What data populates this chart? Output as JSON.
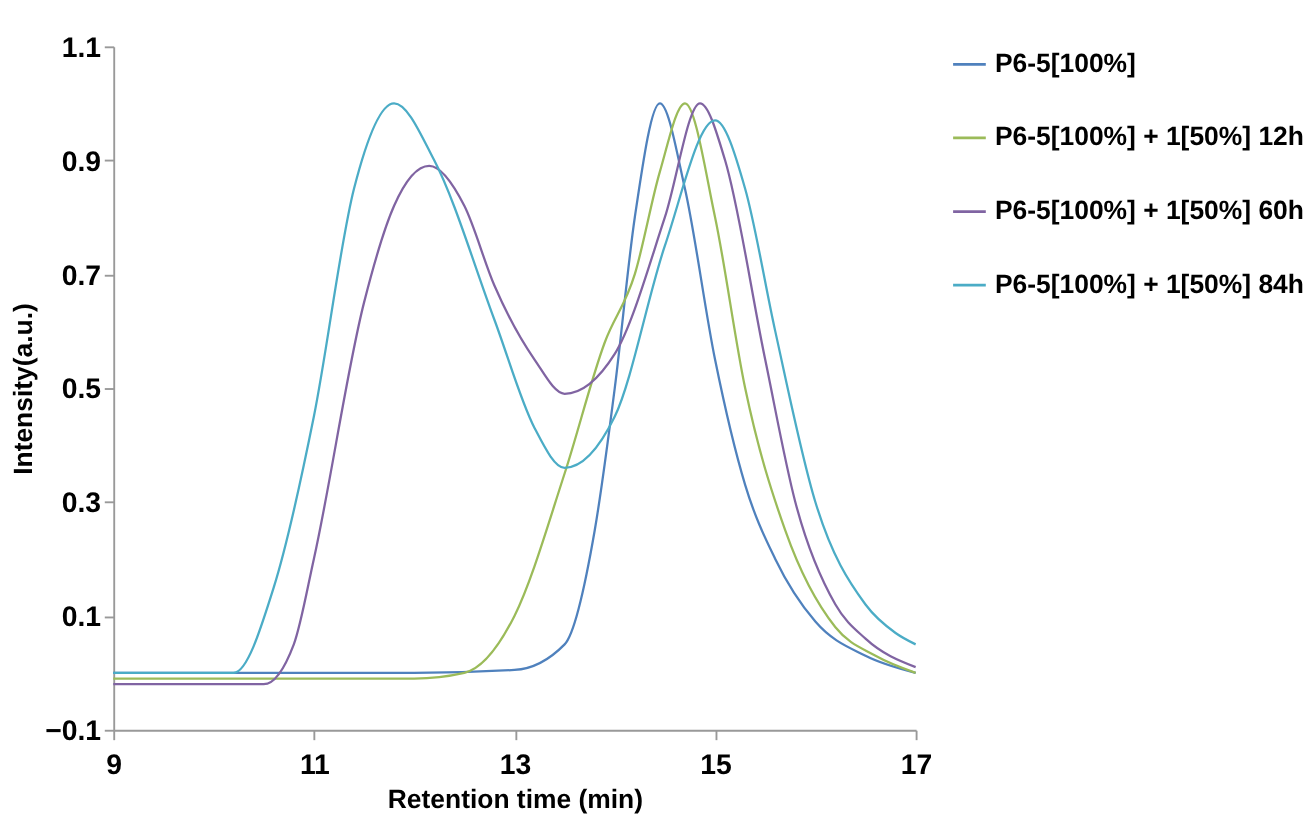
{
  "chart_data": {
    "type": "line",
    "xlabel": "Retention time (min)",
    "ylabel": "Intensity(a.u.)",
    "xlim": [
      9,
      17
    ],
    "xticks": [
      9,
      11,
      13,
      15,
      17
    ],
    "ylim": [
      -0.1,
      1.1
    ],
    "yticks": [
      -0.1,
      0.1,
      0.3,
      0.5,
      0.7,
      0.9,
      1.1
    ],
    "grid": false,
    "legend": "right",
    "marker": "none",
    "line_style": "solid",
    "series": [
      {
        "name": "P6-5[100%]",
        "color": "#4f81bd",
        "x": [
          9,
          10,
          11,
          12,
          13,
          13.5,
          13.8,
          14.0,
          14.2,
          14.45,
          14.7,
          15.0,
          15.3,
          15.6,
          16.0,
          16.5,
          17
        ],
        "values": [
          0,
          0,
          0,
          0,
          0.005,
          0.05,
          0.25,
          0.5,
          0.8,
          1.0,
          0.85,
          0.55,
          0.33,
          0.2,
          0.09,
          0.03,
          0.0
        ]
      },
      {
        "name": "P6-5[100%] + 1[50%] 12h",
        "color": "#9bbb59",
        "x": [
          9,
          10,
          11,
          12,
          12.5,
          13.0,
          13.5,
          13.9,
          14.2,
          14.45,
          14.7,
          15.0,
          15.3,
          15.7,
          16.2,
          16.6,
          17
        ],
        "values": [
          -0.01,
          -0.01,
          -0.01,
          -0.01,
          0.0,
          0.1,
          0.35,
          0.58,
          0.7,
          0.88,
          1.0,
          0.8,
          0.5,
          0.25,
          0.08,
          0.03,
          0.0
        ]
      },
      {
        "name": "P6-5[100%] + 1[50%] 60h",
        "color": "#8064a2",
        "x": [
          9,
          10,
          10.5,
          10.8,
          11.0,
          11.5,
          11.8,
          12.15,
          12.5,
          12.8,
          13.2,
          13.5,
          14.0,
          14.5,
          14.85,
          15.1,
          15.5,
          15.8,
          16.2,
          16.5,
          17
        ],
        "values": [
          -0.02,
          -0.02,
          -0.02,
          0.05,
          0.2,
          0.65,
          0.82,
          0.89,
          0.82,
          0.68,
          0.55,
          0.49,
          0.56,
          0.8,
          1.0,
          0.9,
          0.55,
          0.3,
          0.12,
          0.06,
          0.01
        ]
      },
      {
        "name": "P6-5[100%] + 1[50%] 84h",
        "color": "#4bacc6",
        "x": [
          9,
          10,
          10.2,
          10.6,
          11.0,
          11.4,
          11.8,
          12.2,
          12.8,
          13.2,
          13.5,
          14.0,
          14.5,
          15.0,
          15.3,
          15.6,
          16.0,
          16.5,
          16.8,
          17
        ],
        "values": [
          0,
          0,
          0,
          0.15,
          0.45,
          0.85,
          1.0,
          0.9,
          0.62,
          0.43,
          0.36,
          0.45,
          0.75,
          0.97,
          0.85,
          0.6,
          0.3,
          0.12,
          0.07,
          0.05
        ]
      }
    ]
  }
}
